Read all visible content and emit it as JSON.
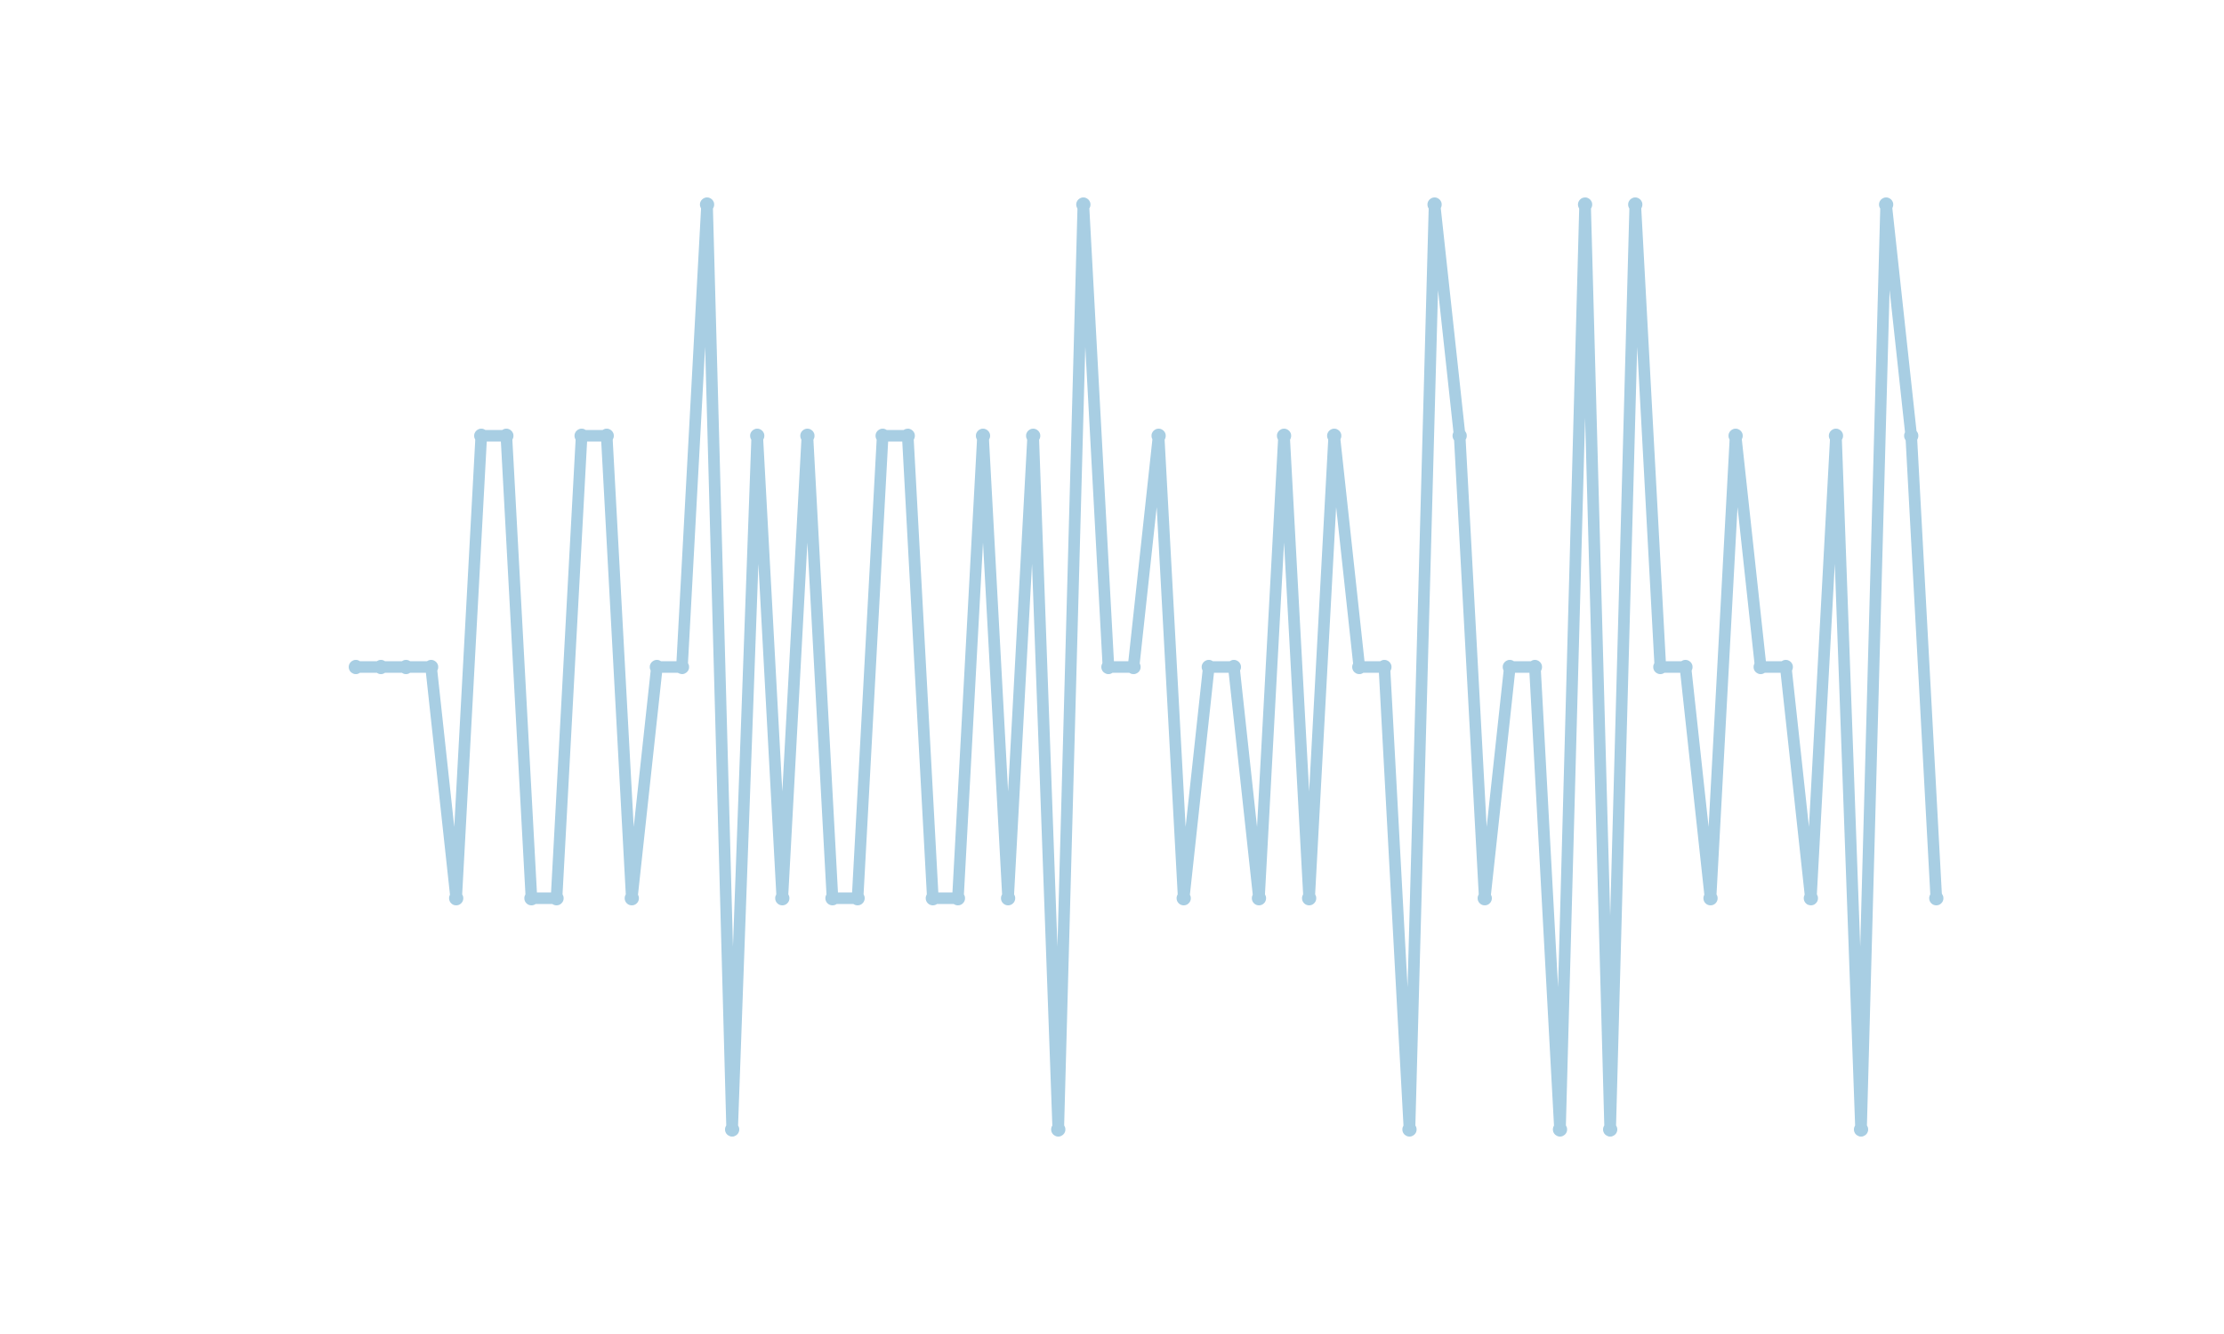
{
  "waveform": {
    "color": "#a8cee3",
    "levels": [
      0,
      0,
      0,
      0,
      -1,
      1,
      1,
      -1,
      -1,
      1,
      1,
      -1,
      0,
      0,
      2,
      -2,
      1,
      -1,
      1,
      -1,
      -1,
      1,
      1,
      -1,
      -1,
      1,
      -1,
      1,
      -2,
      2,
      0,
      0,
      1,
      -1,
      0,
      0,
      -1,
      1,
      -1,
      1,
      0,
      0,
      -2,
      2,
      1,
      -1,
      0,
      0,
      -2,
      2,
      -2,
      2,
      0,
      0,
      -1,
      1,
      0,
      0,
      -1,
      1,
      -2,
      2,
      1,
      -1
    ]
  }
}
